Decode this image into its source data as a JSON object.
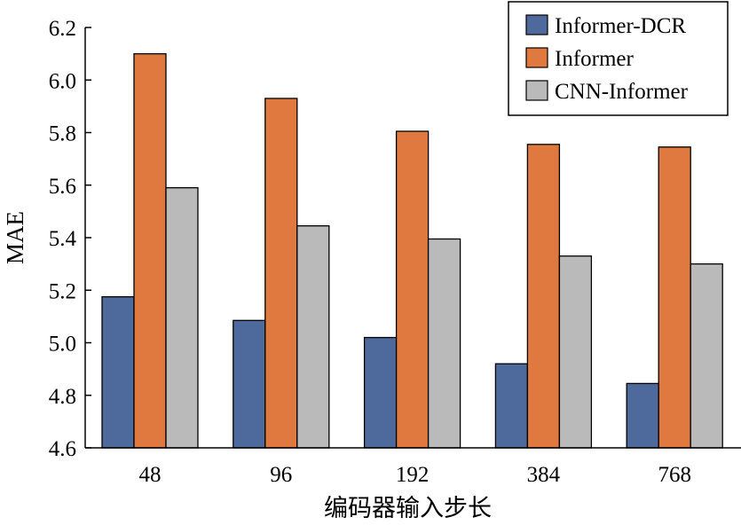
{
  "chart_data": {
    "type": "bar",
    "title": "",
    "xlabel": "编码器输入步长",
    "ylabel": "MAE",
    "categories": [
      "48",
      "96",
      "192",
      "384",
      "768"
    ],
    "ylim": [
      4.6,
      6.2
    ],
    "yticks": [
      "4.6",
      "4.8",
      "5.0",
      "5.2",
      "5.4",
      "5.6",
      "5.8",
      "6.0",
      "6.2"
    ],
    "grid": false,
    "legend_position": "top-right",
    "series": [
      {
        "name": "Informer-DCR",
        "color": "#4e6a9c",
        "values": [
          5.175,
          5.085,
          5.02,
          4.92,
          4.845
        ]
      },
      {
        "name": "Informer",
        "color": "#e0793f",
        "values": [
          6.1,
          5.93,
          5.805,
          5.755,
          5.745
        ]
      },
      {
        "name": "CNN-Informer",
        "color": "#bababa",
        "values": [
          5.59,
          5.445,
          5.395,
          5.33,
          5.3
        ]
      }
    ]
  }
}
